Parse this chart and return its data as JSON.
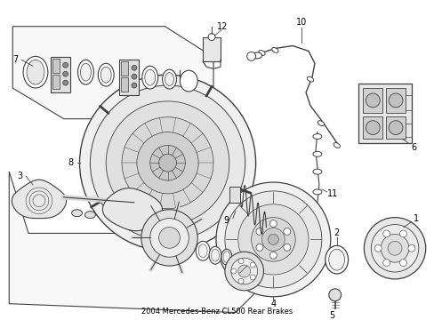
{
  "title": "2004 Mercedes-Benz CL500 Rear Brakes",
  "bg_color": "#ffffff",
  "line_color": "#404040",
  "figsize": [
    4.89,
    3.6
  ],
  "dpi": 100
}
